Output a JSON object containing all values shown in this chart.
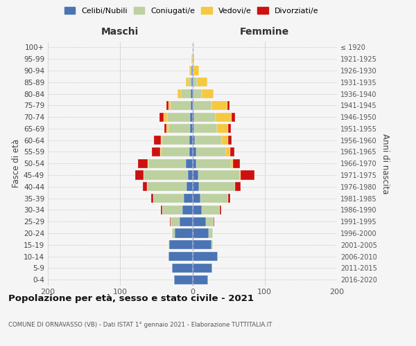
{
  "age_groups_bottom_to_top": [
    "0-4",
    "5-9",
    "10-14",
    "15-19",
    "20-24",
    "25-29",
    "30-34",
    "35-39",
    "40-44",
    "45-49",
    "50-54",
    "55-59",
    "60-64",
    "65-69",
    "70-74",
    "75-79",
    "80-84",
    "85-89",
    "90-94",
    "95-99",
    "100+"
  ],
  "birth_years_bottom_to_top": [
    "2016-2020",
    "2011-2015",
    "2006-2010",
    "2001-2005",
    "1996-2000",
    "1991-1995",
    "1986-1990",
    "1981-1985",
    "1976-1980",
    "1971-1975",
    "1966-1970",
    "1961-1965",
    "1956-1960",
    "1951-1955",
    "1946-1950",
    "1941-1945",
    "1936-1940",
    "1931-1935",
    "1926-1930",
    "1921-1925",
    "≤ 1920"
  ],
  "colors": {
    "celibi": "#4a74b4",
    "coniugati": "#bdd09f",
    "vedovi": "#f5c842",
    "divorziati": "#cc1111"
  },
  "maschi": {
    "celibi": [
      25,
      28,
      33,
      32,
      24,
      18,
      14,
      12,
      8,
      6,
      9,
      4,
      4,
      3,
      3,
      2,
      2,
      1,
      1,
      0,
      0
    ],
    "coniugati": [
      0,
      0,
      0,
      1,
      4,
      12,
      28,
      42,
      55,
      62,
      52,
      40,
      38,
      30,
      32,
      28,
      14,
      4,
      1,
      0,
      0
    ],
    "vedovi": [
      0,
      0,
      0,
      0,
      0,
      0,
      0,
      0,
      0,
      0,
      1,
      1,
      2,
      3,
      5,
      3,
      5,
      4,
      2,
      1,
      0
    ],
    "divorziati": [
      0,
      0,
      0,
      0,
      0,
      1,
      2,
      3,
      6,
      11,
      13,
      11,
      9,
      3,
      6,
      3,
      0,
      0,
      0,
      0,
      0
    ]
  },
  "femmine": {
    "celibi": [
      22,
      27,
      35,
      26,
      23,
      19,
      13,
      11,
      9,
      8,
      5,
      5,
      3,
      2,
      2,
      1,
      1,
      1,
      0,
      0,
      0
    ],
    "coniugati": [
      0,
      0,
      0,
      2,
      5,
      10,
      25,
      38,
      50,
      58,
      48,
      42,
      38,
      32,
      30,
      25,
      12,
      5,
      1,
      0,
      0
    ],
    "vedovi": [
      0,
      0,
      0,
      0,
      0,
      0,
      0,
      0,
      0,
      1,
      3,
      5,
      8,
      15,
      22,
      22,
      16,
      15,
      8,
      2,
      1
    ],
    "divorziati": [
      0,
      0,
      0,
      0,
      0,
      1,
      2,
      3,
      8,
      19,
      10,
      6,
      5,
      4,
      5,
      3,
      0,
      0,
      0,
      0,
      0
    ]
  },
  "title": "Popolazione per età, sesso e stato civile - 2021",
  "subtitle": "COMUNE DI ORNAVASSO (VB) - Dati ISTAT 1° gennaio 2021 - Elaborazione TUTTITALIA.IT",
  "label_maschi": "Maschi",
  "label_femmine": "Femmine",
  "ylabel_left": "Fasce di età",
  "ylabel_right": "Anni di nascita",
  "xlim": 200,
  "legend_labels": [
    "Celibi/Nubili",
    "Coniugati/e",
    "Vedovi/e",
    "Divorziati/e"
  ],
  "bg_color": "#f5f5f5"
}
